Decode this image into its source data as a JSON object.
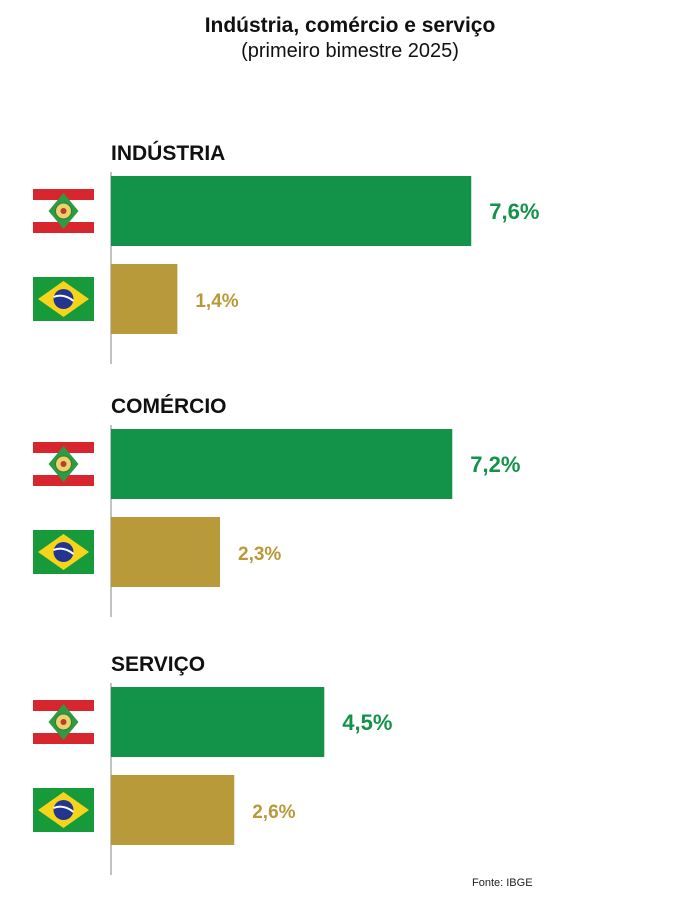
{
  "title": "Indústria, comércio e serviço",
  "subtitle": "(primeiro bimestre 2025)",
  "source": "Fonte: IBGE",
  "colors": {
    "sc_bar": "#13924a",
    "br_bar": "#b89a3a",
    "sc_label": "#13924a",
    "br_label": "#b89a3a",
    "axis": "#999999"
  },
  "chart_data": {
    "type": "bar",
    "orientation": "horizontal",
    "categories": [
      "INDÚSTRIA",
      "COMÉRCIO",
      "SERVIÇO"
    ],
    "series": [
      {
        "flag": "santa-catarina-flag-icon",
        "values": [
          7.6,
          7.2,
          4.5
        ],
        "labels": [
          "7,6%",
          "7,2%",
          "4,5%"
        ]
      },
      {
        "flag": "brazil-flag-icon",
        "values": [
          1.4,
          2.3,
          2.6
        ],
        "labels": [
          "1,4%",
          "2,3%",
          "2,6%"
        ]
      }
    ],
    "unit": "%",
    "grid": false,
    "legend": "none"
  }
}
